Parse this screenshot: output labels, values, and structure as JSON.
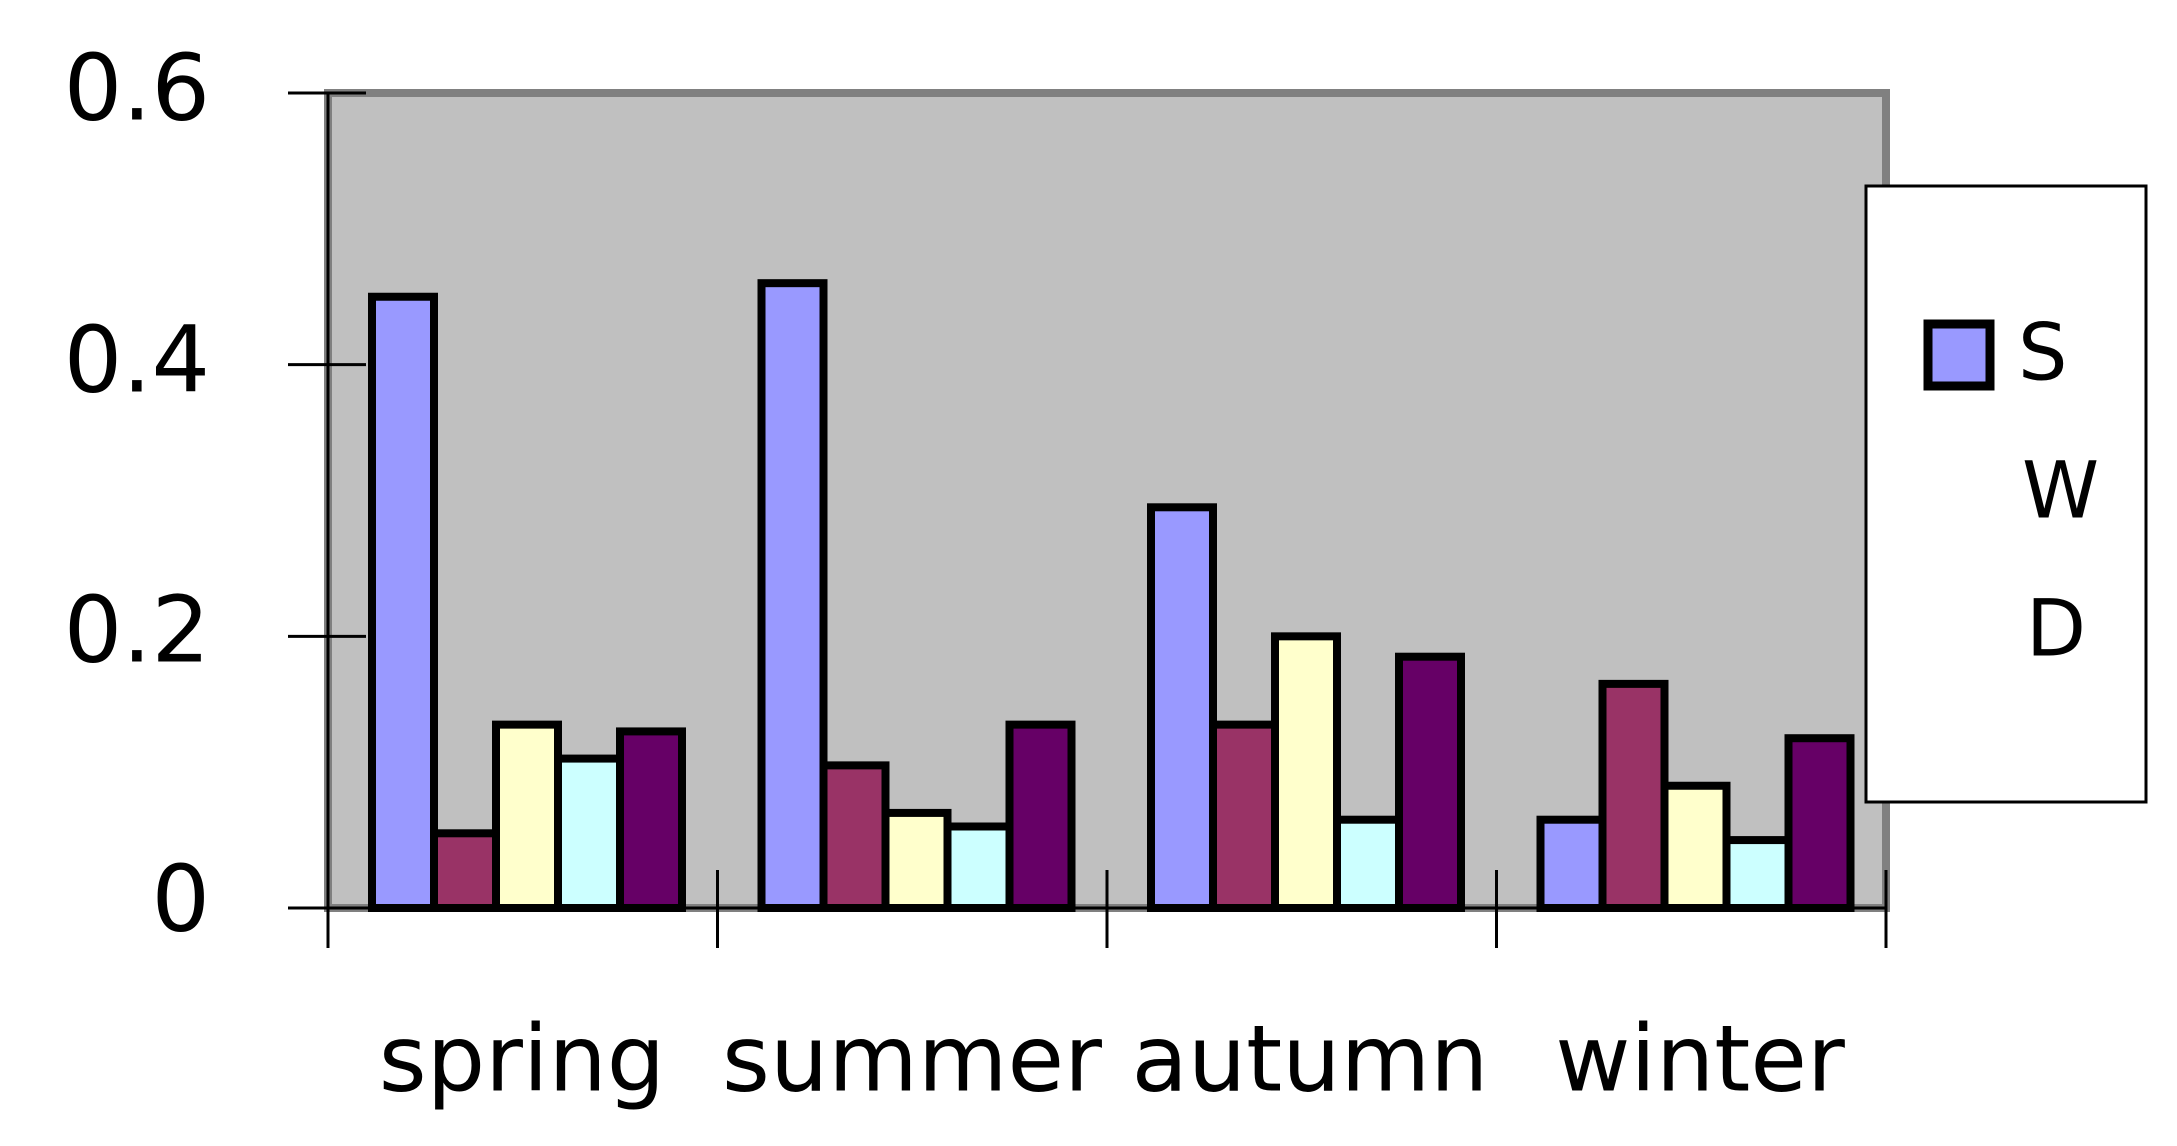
{
  "chart_data": {
    "type": "bar",
    "title": "",
    "xlabel": "",
    "ylabel": "",
    "categories": [
      "spring",
      "summer",
      "autumn",
      "winter"
    ],
    "ylim": [
      0,
      0.6
    ],
    "yticks": [
      "0",
      "0.2",
      "0.4",
      "0.6"
    ],
    "grid": false,
    "plot_background": "#c0c0c0",
    "legend_position": "right",
    "series": [
      {
        "name": "S",
        "color": "#9999ff",
        "values": [
          0.45,
          0.46,
          0.295,
          0.065
        ]
      },
      {
        "name": "W",
        "color": "#993366",
        "values": [
          0.055,
          0.105,
          0.135,
          0.165
        ]
      },
      {
        "name": "D",
        "color": "#ffffcc",
        "values": [
          0.135,
          0.07,
          0.2,
          0.09
        ]
      },
      {
        "color": "#ccffff",
        "values": [
          0.11,
          0.06,
          0.065,
          0.05
        ]
      },
      {
        "color": "#660066",
        "values": [
          0.13,
          0.135,
          0.185,
          0.125
        ]
      }
    ]
  }
}
